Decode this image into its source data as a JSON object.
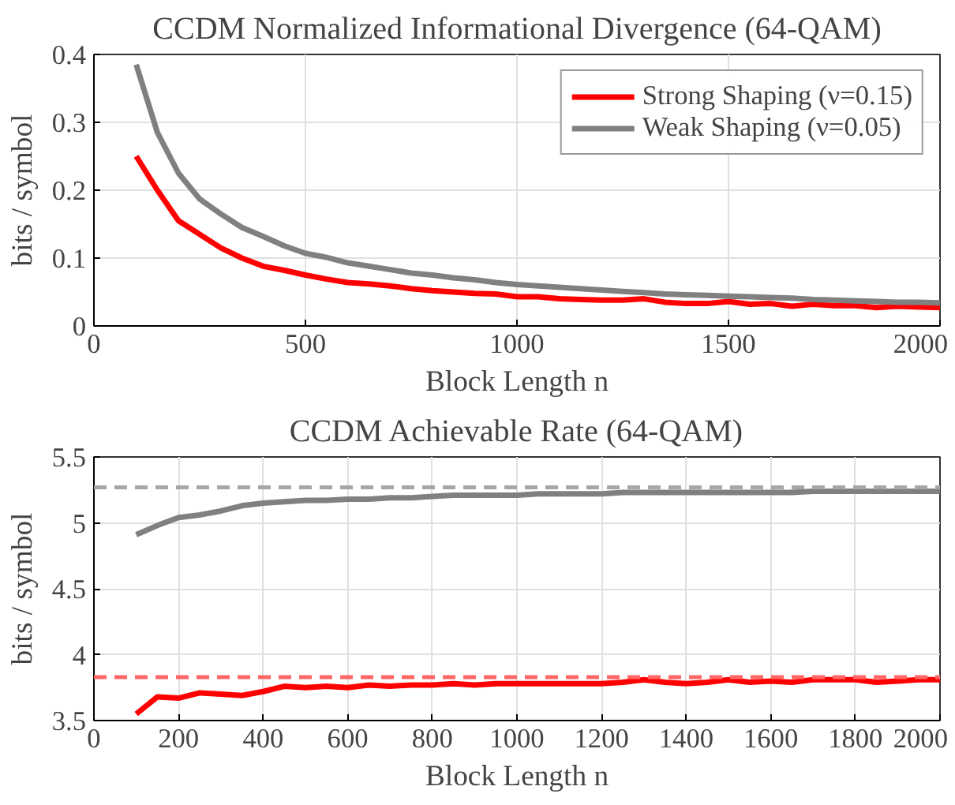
{
  "chart_data": [
    {
      "type": "line",
      "title": "CCDM Normalized Informational Divergence (64-QAM)",
      "xlabel": "Block Length n",
      "ylabel": "bits / symbol",
      "x": [
        100,
        150,
        200,
        250,
        300,
        350,
        400,
        450,
        500,
        550,
        600,
        650,
        700,
        750,
        800,
        850,
        900,
        950,
        1000,
        1050,
        1100,
        1150,
        1200,
        1250,
        1300,
        1350,
        1400,
        1450,
        1500,
        1550,
        1600,
        1650,
        1700,
        1750,
        1800,
        1850,
        1900,
        1950,
        2000
      ],
      "series": [
        {
          "name": "Strong Shaping (ν=0.15)",
          "color": "#ff0000",
          "values": [
            0.25,
            0.2,
            0.155,
            0.135,
            0.115,
            0.1,
            0.088,
            0.082,
            0.075,
            0.069,
            0.064,
            0.062,
            0.059,
            0.055,
            0.052,
            0.05,
            0.048,
            0.047,
            0.043,
            0.043,
            0.04,
            0.039,
            0.038,
            0.038,
            0.04,
            0.035,
            0.033,
            0.033,
            0.036,
            0.032,
            0.033,
            0.029,
            0.032,
            0.03,
            0.03,
            0.027,
            0.029,
            0.028,
            0.027
          ]
        },
        {
          "name": "Weak Shaping (ν=0.05)",
          "color": "#808080",
          "values": [
            0.385,
            0.285,
            0.225,
            0.187,
            0.165,
            0.145,
            0.132,
            0.118,
            0.107,
            0.101,
            0.093,
            0.088,
            0.083,
            0.078,
            0.075,
            0.071,
            0.068,
            0.064,
            0.061,
            0.059,
            0.057,
            0.055,
            0.053,
            0.051,
            0.049,
            0.047,
            0.046,
            0.045,
            0.044,
            0.043,
            0.042,
            0.041,
            0.039,
            0.038,
            0.037,
            0.036,
            0.035,
            0.035,
            0.034
          ]
        }
      ],
      "xlim": [
        0,
        2000
      ],
      "xticks": [
        0,
        500,
        1000,
        1500,
        2000
      ],
      "ylim": [
        0,
        0.4
      ],
      "yticks": [
        0,
        0.1,
        0.2,
        0.3,
        0.4
      ],
      "grid": true,
      "legend": "top right",
      "line_style": "solid"
    },
    {
      "type": "line",
      "title": "CCDM Achievable Rate (64-QAM)",
      "xlabel": "Block Length n",
      "ylabel": "bits / symbol",
      "x": [
        100,
        150,
        200,
        250,
        300,
        350,
        400,
        450,
        500,
        550,
        600,
        650,
        700,
        750,
        800,
        850,
        900,
        950,
        1000,
        1050,
        1100,
        1150,
        1200,
        1250,
        1300,
        1350,
        1400,
        1450,
        1500,
        1550,
        1600,
        1650,
        1700,
        1750,
        1800,
        1850,
        1900,
        1950,
        2000
      ],
      "series": [
        {
          "color": "#ff0000",
          "values": [
            3.55,
            3.68,
            3.67,
            3.71,
            3.7,
            3.69,
            3.72,
            3.76,
            3.75,
            3.76,
            3.75,
            3.77,
            3.76,
            3.77,
            3.77,
            3.78,
            3.77,
            3.78,
            3.78,
            3.78,
            3.78,
            3.78,
            3.78,
            3.79,
            3.81,
            3.79,
            3.78,
            3.79,
            3.81,
            3.79,
            3.8,
            3.79,
            3.81,
            3.81,
            3.81,
            3.79,
            3.8,
            3.81,
            3.81
          ]
        },
        {
          "color": "#808080",
          "values": [
            4.91,
            4.98,
            5.04,
            5.06,
            5.09,
            5.13,
            5.15,
            5.16,
            5.17,
            5.17,
            5.18,
            5.18,
            5.19,
            5.19,
            5.2,
            5.21,
            5.21,
            5.21,
            5.21,
            5.22,
            5.22,
            5.22,
            5.22,
            5.23,
            5.23,
            5.23,
            5.23,
            5.23,
            5.23,
            5.23,
            5.23,
            5.23,
            5.24,
            5.24,
            5.24,
            5.24,
            5.24,
            5.24,
            5.24
          ]
        }
      ],
      "ref_lines": [
        {
          "axis": "y",
          "value": 5.27,
          "color": "#a6a6a6",
          "line_style": "dashed"
        },
        {
          "axis": "y",
          "value": 3.83,
          "color": "#ff6666",
          "line_style": "dashed"
        }
      ],
      "xlim": [
        0,
        2000
      ],
      "xticks": [
        0,
        200,
        400,
        600,
        800,
        1000,
        1200,
        1400,
        1600,
        1800,
        2000
      ],
      "ylim": [
        3.5,
        5.5
      ],
      "yticks": [
        3.5,
        4,
        4.5,
        5,
        5.5
      ],
      "grid": true,
      "line_style": "solid"
    }
  ]
}
